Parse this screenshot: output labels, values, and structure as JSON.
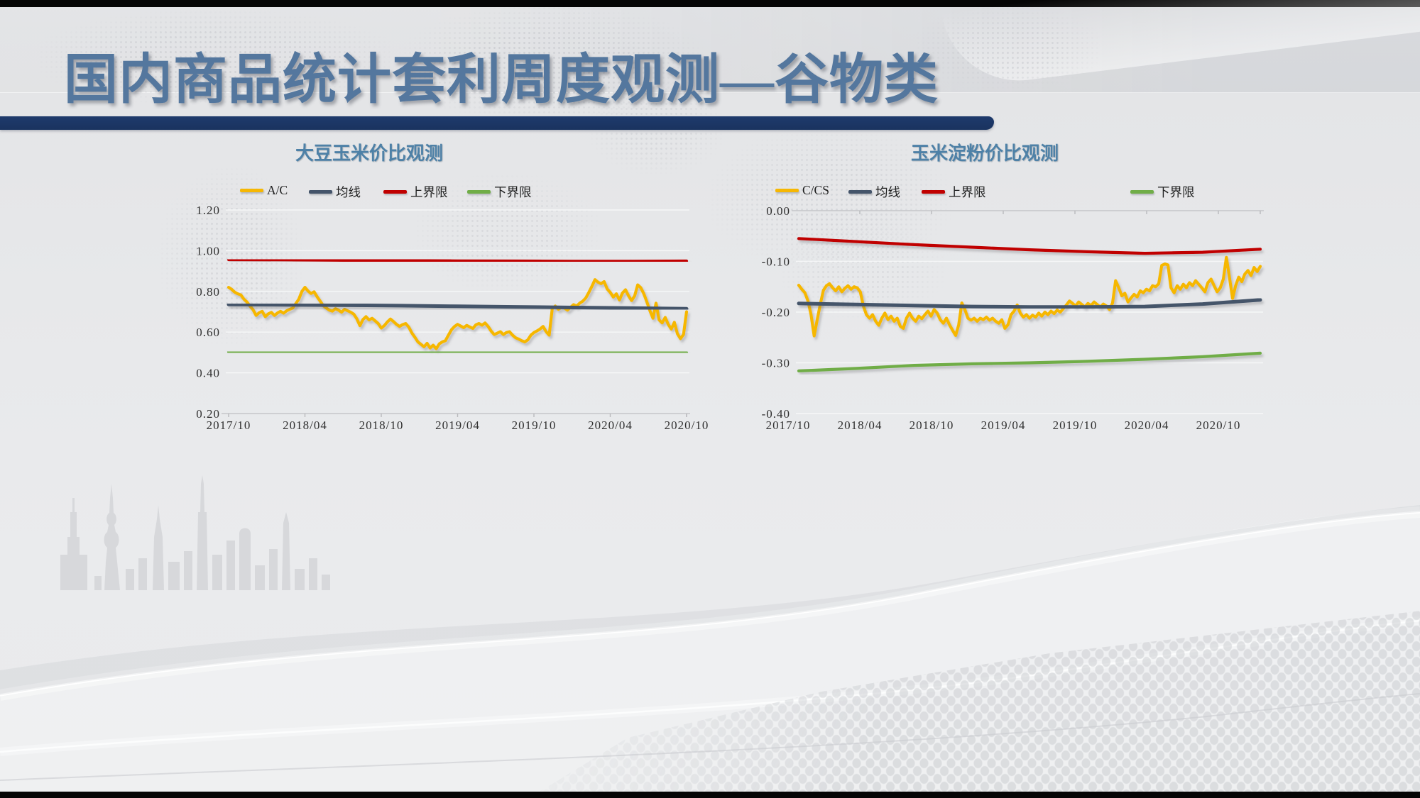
{
  "slide": {
    "title": "国内商品统计套利周度观测—谷物类",
    "title_color": "#54779e",
    "accent_color": "#1e3a6c",
    "chart_title_color": "#4e81a7"
  },
  "chart_data": [
    {
      "type": "line",
      "title": "大豆玉米价比观测",
      "ylim": [
        0.2,
        1.2
      ],
      "ytick_values": [
        1.2,
        1.0,
        0.8,
        0.6,
        0.4,
        0.2
      ],
      "ytick_labels": [
        "1.20",
        "1.00",
        "0.80",
        "0.60",
        "0.40",
        "0.20"
      ],
      "x_labels": [
        "2017/10",
        "2018/04",
        "2018/10",
        "2019/04",
        "2019/10",
        "2020/04",
        "2020/10"
      ],
      "grid": true,
      "legend_position": "top",
      "axis_side": "bottom",
      "series": [
        {
          "name": "A/C",
          "color": "#F6B703",
          "width": 4.2,
          "values": [
            0.82,
            0.81,
            0.796,
            0.788,
            0.783,
            0.762,
            0.748,
            0.728,
            0.71,
            0.682,
            0.695,
            0.702,
            0.676,
            0.69,
            0.697,
            0.682,
            0.694,
            0.702,
            0.693,
            0.705,
            0.712,
            0.718,
            0.74,
            0.762,
            0.8,
            0.82,
            0.802,
            0.79,
            0.798,
            0.773,
            0.752,
            0.73,
            0.718,
            0.708,
            0.703,
            0.715,
            0.708,
            0.698,
            0.712,
            0.705,
            0.698,
            0.688,
            0.665,
            0.632,
            0.662,
            0.676,
            0.66,
            0.668,
            0.655,
            0.642,
            0.62,
            0.632,
            0.65,
            0.664,
            0.652,
            0.638,
            0.628,
            0.637,
            0.642,
            0.625,
            0.596,
            0.575,
            0.552,
            0.54,
            0.528,
            0.545,
            0.522,
            0.536,
            0.518,
            0.542,
            0.552,
            0.558,
            0.585,
            0.612,
            0.628,
            0.638,
            0.63,
            0.622,
            0.633,
            0.625,
            0.618,
            0.636,
            0.642,
            0.634,
            0.645,
            0.628,
            0.605,
            0.588,
            0.595,
            0.602,
            0.588,
            0.598,
            0.602,
            0.585,
            0.572,
            0.566,
            0.558,
            0.552,
            0.562,
            0.585,
            0.598,
            0.606,
            0.615,
            0.628,
            0.602,
            0.585,
            0.715,
            0.728,
            0.712,
            0.722,
            0.718,
            0.708,
            0.722,
            0.735,
            0.728,
            0.742,
            0.752,
            0.768,
            0.795,
            0.825,
            0.858,
            0.845,
            0.838,
            0.848,
            0.812,
            0.795,
            0.772,
            0.788,
            0.758,
            0.792,
            0.808,
            0.778,
            0.755,
            0.778,
            0.832,
            0.818,
            0.788,
            0.748,
            0.705,
            0.668,
            0.742,
            0.66,
            0.645,
            0.672,
            0.638,
            0.615,
            0.648,
            0.592,
            0.568,
            0.588,
            0.7
          ]
        },
        {
          "name": "均线",
          "color": "#44546A",
          "width": 5,
          "values": [
            0.736,
            0.734,
            0.732,
            0.73,
            0.727,
            0.724,
            0.721,
            0.718,
            0.715
          ]
        },
        {
          "name": "上界限",
          "color": "#C00000",
          "width": 4.2,
          "values": [
            0.956,
            0.955,
            0.953,
            0.951,
            0.95,
            0.949,
            0.948,
            0.948,
            0.949
          ]
        },
        {
          "name": "下界限",
          "color": "#70AD47",
          "width": 4.2,
          "values": [
            0.503,
            0.502,
            0.502,
            0.501,
            0.501,
            0.5,
            0.5,
            0.499,
            0.499
          ]
        }
      ]
    },
    {
      "type": "line",
      "title": "玉米淀粉价比观测",
      "ylim": [
        -0.4,
        0.0
      ],
      "ytick_values": [
        0.0,
        -0.1,
        -0.2,
        -0.3,
        -0.4
      ],
      "ytick_labels": [
        "0.00",
        "-0.10",
        "-0.20",
        "-0.30",
        "-0.40"
      ],
      "x_labels": [
        "2017/10",
        "2018/04",
        "2018/10",
        "2019/04",
        "2019/10",
        "2020/04",
        "2020/10"
      ],
      "grid": true,
      "legend_position": "top",
      "axis_side": "top",
      "series": [
        {
          "name": "C/CS",
          "color": "#F6B703",
          "width": 4.2,
          "values": [
            -0.147,
            -0.155,
            -0.162,
            -0.178,
            -0.205,
            -0.247,
            -0.215,
            -0.185,
            -0.157,
            -0.148,
            -0.144,
            -0.152,
            -0.158,
            -0.15,
            -0.16,
            -0.153,
            -0.148,
            -0.155,
            -0.15,
            -0.152,
            -0.16,
            -0.188,
            -0.205,
            -0.212,
            -0.205,
            -0.218,
            -0.226,
            -0.212,
            -0.202,
            -0.215,
            -0.208,
            -0.218,
            -0.212,
            -0.228,
            -0.232,
            -0.212,
            -0.202,
            -0.212,
            -0.218,
            -0.208,
            -0.213,
            -0.205,
            -0.198,
            -0.208,
            -0.195,
            -0.202,
            -0.215,
            -0.222,
            -0.212,
            -0.225,
            -0.236,
            -0.246,
            -0.225,
            -0.182,
            -0.195,
            -0.212,
            -0.216,
            -0.212,
            -0.218,
            -0.212,
            -0.215,
            -0.21,
            -0.216,
            -0.212,
            -0.218,
            -0.222,
            -0.215,
            -0.232,
            -0.225,
            -0.205,
            -0.198,
            -0.186,
            -0.202,
            -0.21,
            -0.205,
            -0.212,
            -0.206,
            -0.21,
            -0.202,
            -0.208,
            -0.2,
            -0.205,
            -0.198,
            -0.203,
            -0.196,
            -0.2,
            -0.193,
            -0.186,
            -0.178,
            -0.183,
            -0.188,
            -0.18,
            -0.185,
            -0.19,
            -0.183,
            -0.187,
            -0.18,
            -0.185,
            -0.19,
            -0.184,
            -0.188,
            -0.195,
            -0.182,
            -0.138,
            -0.152,
            -0.168,
            -0.163,
            -0.18,
            -0.172,
            -0.165,
            -0.17,
            -0.158,
            -0.162,
            -0.155,
            -0.158,
            -0.148,
            -0.15,
            -0.144,
            -0.108,
            -0.105,
            -0.107,
            -0.152,
            -0.162,
            -0.148,
            -0.155,
            -0.145,
            -0.152,
            -0.142,
            -0.148,
            -0.138,
            -0.145,
            -0.152,
            -0.16,
            -0.142,
            -0.135,
            -0.148,
            -0.16,
            -0.152,
            -0.135,
            -0.092,
            -0.132,
            -0.173,
            -0.148,
            -0.131,
            -0.14,
            -0.125,
            -0.118,
            -0.128,
            -0.112,
            -0.12,
            -0.11
          ]
        },
        {
          "name": "均线",
          "color": "#44546A",
          "width": 5,
          "values": [
            -0.183,
            -0.185,
            -0.187,
            -0.189,
            -0.19,
            -0.19,
            -0.189,
            -0.184,
            -0.176
          ]
        },
        {
          "name": "上界限",
          "color": "#C00000",
          "width": 4.2,
          "values": [
            -0.055,
            -0.061,
            -0.067,
            -0.072,
            -0.077,
            -0.081,
            -0.084,
            -0.082,
            -0.076
          ]
        },
        {
          "name": "下界限",
          "color": "#70AD47",
          "width": 4.2,
          "values": [
            -0.316,
            -0.311,
            -0.305,
            -0.302,
            -0.3,
            -0.297,
            -0.293,
            -0.288,
            -0.281
          ]
        }
      ]
    }
  ]
}
